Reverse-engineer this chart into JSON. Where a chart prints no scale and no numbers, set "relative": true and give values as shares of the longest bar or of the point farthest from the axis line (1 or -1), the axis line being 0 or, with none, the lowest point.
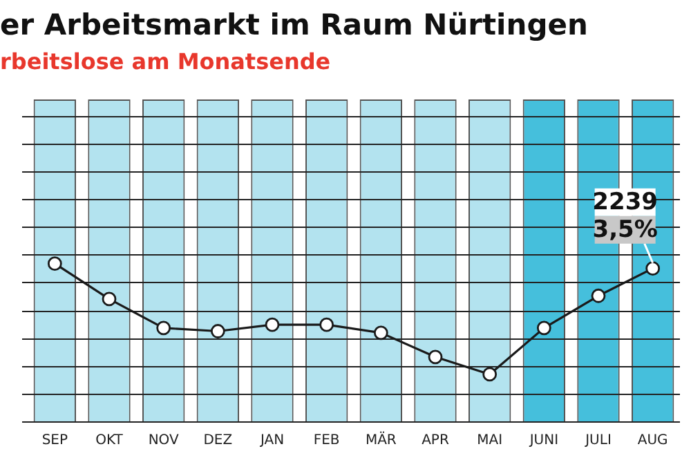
{
  "chart_data": {
    "type": "line",
    "title": "er Arbeitsmarkt im Raum Nürtingen",
    "subtitle": "rbeitslose am Monatsende",
    "categories": [
      "SEP",
      "OKT",
      "NOV",
      "DEZ",
      "JAN",
      "FEB",
      "MÄR",
      "APR",
      "MAI",
      "JUNI",
      "JULI",
      "AUG"
    ],
    "relative": true,
    "series": [
      {
        "type": "bar",
        "colors": [
          "#b3e3ef",
          "#b3e3ef",
          "#b3e3ef",
          "#b3e3ef",
          "#b3e3ef",
          "#b3e3ef",
          "#b3e3ef",
          "#b3e3ef",
          "#b3e3ef",
          "#45bfdc",
          "#45bfdc",
          "#45bfdc"
        ],
        "values": [
          1,
          1,
          1,
          1,
          1,
          1,
          1,
          1,
          1,
          1,
          1,
          1
        ]
      },
      {
        "color": "#1a1a1a",
        "values": [
          0.49,
          0.38,
          0.29,
          0.28,
          0.3,
          0.3,
          0.275,
          0.2,
          0.146,
          0.29,
          0.39,
          0.475
        ]
      }
    ],
    "annotations": [
      {
        "text": "2239",
        "x": "AUG",
        "y": 0.475
      },
      {
        "text": "3,5%",
        "x": "AUG",
        "y": 0.475
      }
    ],
    "grid": "y",
    "marker": "circle",
    "line_style": "solid",
    "legend": false
  }
}
